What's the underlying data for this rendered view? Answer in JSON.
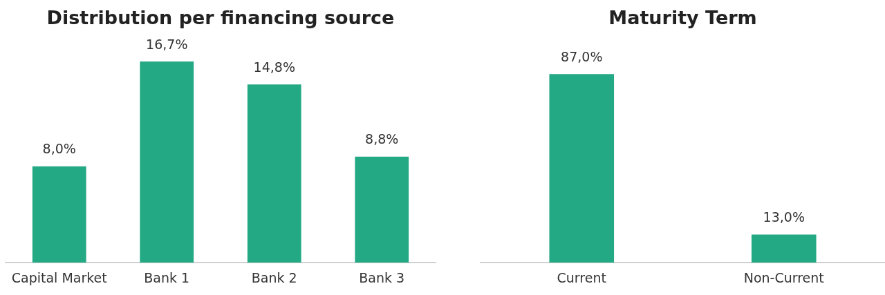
{
  "chart_data": [
    {
      "type": "bar",
      "title": "Distribution per financing source",
      "categories": [
        "Capital Market",
        "Bank 1",
        "Bank 2",
        "Bank 3"
      ],
      "values": [
        8.0,
        16.7,
        14.8,
        8.8
      ],
      "color": "#23a984",
      "value_labels": [
        "8,0%",
        "16,7%",
        "14,8%",
        "8,8%"
      ],
      "grid": false,
      "legend": false
    },
    {
      "type": "bar",
      "title": "Maturity Term",
      "categories": [
        "Current",
        "Non-Current"
      ],
      "values": [
        87.0,
        13.0
      ],
      "color": "#23a984",
      "value_labels": [
        "87,0%",
        "13,0%"
      ],
      "grid": false,
      "legend": false
    }
  ]
}
